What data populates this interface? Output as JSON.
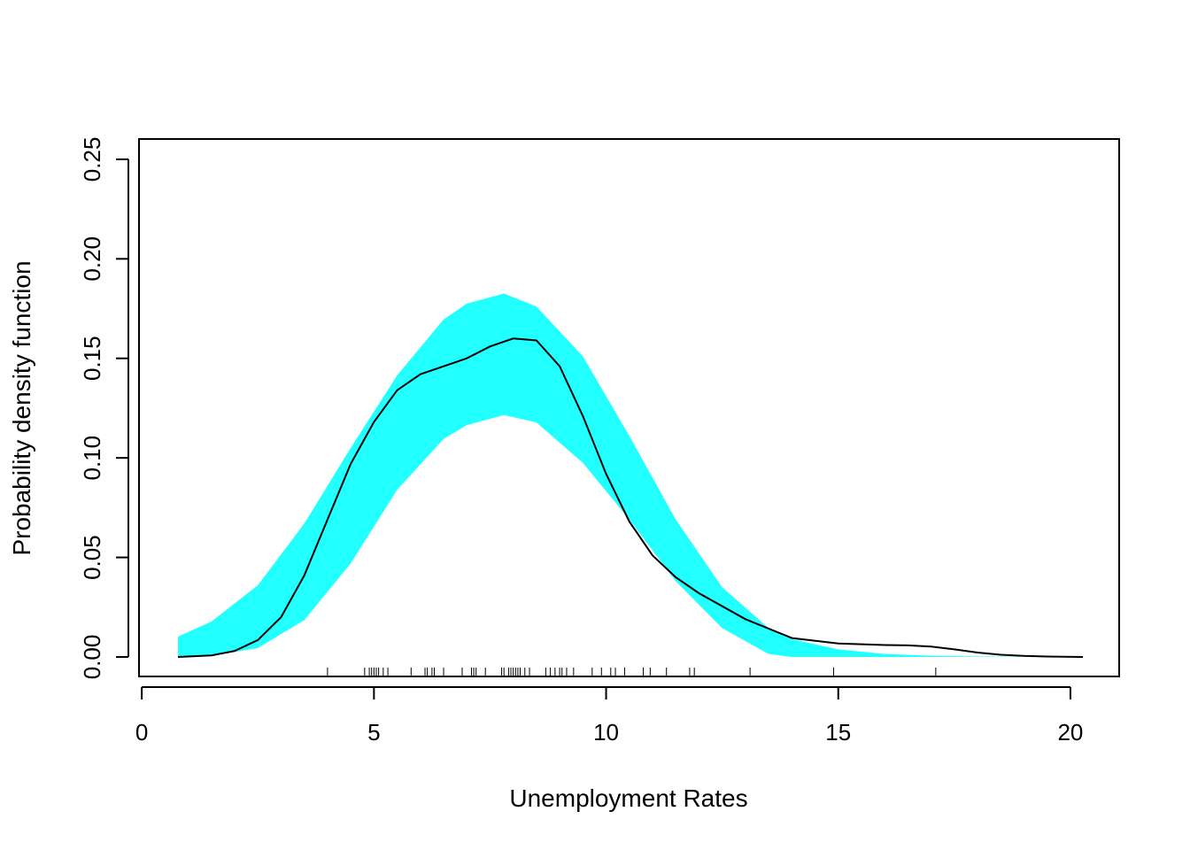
{
  "chart_data": {
    "type": "area",
    "title": "",
    "xlabel": "Unemployment Rates",
    "ylabel": "Probability density function",
    "xlim": [
      -0.06,
      21.05
    ],
    "ylim": [
      -0.0098,
      0.2602
    ],
    "x_ticks": [
      "0",
      "5",
      "10",
      "15",
      "20"
    ],
    "x_tick_values": [
      0,
      5,
      10,
      15,
      20
    ],
    "y_ticks": [
      "0.00",
      "0.05",
      "0.10",
      "0.15",
      "0.20",
      "0.25"
    ],
    "y_tick_values": [
      0,
      0.05,
      0.1,
      0.15,
      0.2,
      0.25
    ],
    "grid": false,
    "band_color": "#22ffff",
    "line_color": "#000000",
    "band": {
      "x": [
        0.78,
        1.5,
        2.5,
        3.5,
        4.5,
        5.5,
        6.5,
        7.0,
        7.8,
        8.5,
        9.5,
        10.5,
        11.5,
        12.5,
        13.5,
        14.0,
        15.0,
        16.0,
        17.0,
        18.0,
        19.0,
        20.27
      ],
      "upper": [
        0.0102,
        0.0178,
        0.036,
        0.067,
        0.105,
        0.1415,
        0.1695,
        0.1775,
        0.1826,
        0.176,
        0.151,
        0.111,
        0.069,
        0.035,
        0.0145,
        0.009,
        0.0038,
        0.0015,
        0.0006,
        0.0002,
        0.0001,
        0.0
      ],
      "lower": [
        0.0,
        0.0005,
        0.0045,
        0.0185,
        0.047,
        0.084,
        0.1095,
        0.1165,
        0.1215,
        0.1178,
        0.0975,
        0.069,
        0.038,
        0.0145,
        0.0015,
        0.0,
        0.0,
        0.0,
        0.0,
        0.0,
        0.0,
        0.0
      ]
    },
    "density": {
      "x": [
        0.78,
        1.5,
        2.0,
        2.5,
        3.0,
        3.5,
        4.0,
        4.5,
        5.0,
        5.5,
        6.0,
        6.5,
        7.0,
        7.5,
        8.0,
        8.5,
        9.0,
        9.5,
        10.0,
        10.5,
        11.0,
        11.5,
        12.0,
        13.0,
        14.0,
        15.0,
        16.0,
        16.5,
        17.0,
        17.5,
        18.0,
        18.5,
        19.0,
        19.5,
        20.27
      ],
      "y": [
        0.0,
        0.0008,
        0.003,
        0.0085,
        0.02,
        0.041,
        0.069,
        0.097,
        0.118,
        0.134,
        0.142,
        0.146,
        0.15,
        0.156,
        0.16,
        0.159,
        0.146,
        0.121,
        0.092,
        0.068,
        0.051,
        0.04,
        0.032,
        0.019,
        0.0095,
        0.0068,
        0.006,
        0.0058,
        0.0052,
        0.0038,
        0.0022,
        0.0011,
        0.0005,
        0.0002,
        0.0
      ]
    },
    "rug": [
      4.0,
      4.8,
      4.9,
      4.95,
      5.0,
      5.05,
      5.1,
      5.2,
      5.3,
      5.8,
      6.1,
      6.15,
      6.25,
      6.3,
      6.5,
      6.9,
      7.1,
      7.15,
      7.2,
      7.4,
      7.75,
      7.8,
      7.9,
      7.95,
      8.0,
      8.05,
      8.1,
      8.15,
      8.25,
      8.35,
      8.7,
      8.8,
      8.9,
      9.0,
      9.05,
      9.15,
      9.3,
      9.7,
      9.9,
      10.1,
      10.2,
      10.4,
      10.8,
      10.95,
      11.3,
      11.8,
      11.9,
      13.1,
      14.9,
      17.1
    ]
  }
}
